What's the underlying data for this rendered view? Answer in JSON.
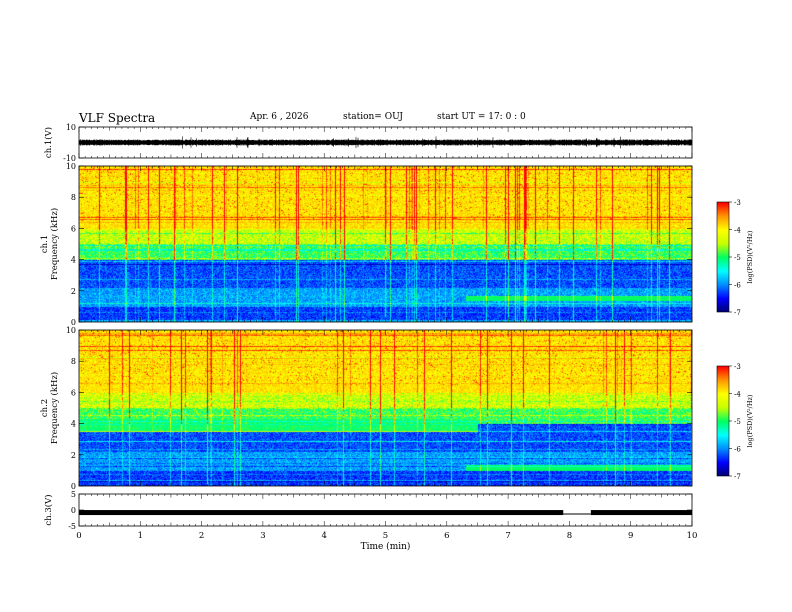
{
  "header": {
    "title": "VLF Spectra",
    "date": "Apr. 6 , 2026",
    "station": "station= OUJ",
    "start": "start UT = 17: 0 : 0"
  },
  "colors": {
    "axis": "#000000",
    "waveform": "#000000",
    "colormap": [
      "#00007a",
      "#0000ff",
      "#0099ff",
      "#00ffff",
      "#00ff66",
      "#ffff00",
      "#ff8800",
      "#ff0000",
      "#ffffff"
    ]
  },
  "chart_data": [
    {
      "type": "line",
      "panel": "ch1-waveform",
      "ylabel": "ch.1(V)",
      "ylim": [
        -10,
        10
      ],
      "yticks": [
        "10",
        "-10"
      ],
      "xlim": [
        0,
        10
      ],
      "description_of_trace": "noise band roughly -2 to 2 V with spikes",
      "band": [
        -2,
        2
      ]
    },
    {
      "type": "heatmap",
      "panel": "ch1-spectrogram",
      "ylabel": "Frequency (kHz)",
      "sublabel": "ch.1",
      "ylim": [
        0,
        10
      ],
      "yticks": [
        "0",
        "2",
        "4",
        "6",
        "8",
        "10"
      ],
      "xlim": [
        0,
        10
      ],
      "colorbar": {
        "label": "log(PSD)(V²/Hz)",
        "range": [
          -7,
          -3
        ],
        "ticks": [
          "-3",
          "-4",
          "-5",
          "-6",
          "-7"
        ]
      }
    },
    {
      "type": "heatmap",
      "panel": "ch2-spectrogram",
      "ylabel": "Frequency (kHz)",
      "sublabel": "ch.2",
      "ylim": [
        0,
        10
      ],
      "yticks": [
        "0",
        "2",
        "4",
        "6",
        "8",
        "10"
      ],
      "xlim": [
        0,
        10
      ],
      "colorbar": {
        "label": "log(PSD)(V²/Hz)",
        "range": [
          -7,
          -3
        ],
        "ticks": [
          "-3",
          "-4",
          "-5",
          "-6",
          "-7"
        ]
      }
    },
    {
      "type": "line",
      "panel": "ch3-waveform",
      "ylabel": "ch.3(V)",
      "ylim": [
        -5,
        5
      ],
      "yticks": [
        "5",
        "0",
        "-5"
      ],
      "xlim": [
        0,
        10
      ],
      "xlabel": "Time (min)",
      "xticks": [
        "0",
        "1",
        "2",
        "3",
        "4",
        "5",
        "6",
        "7",
        "8",
        "9",
        "10"
      ],
      "level": -0.8,
      "gap": [
        7.9,
        8.35
      ]
    }
  ]
}
